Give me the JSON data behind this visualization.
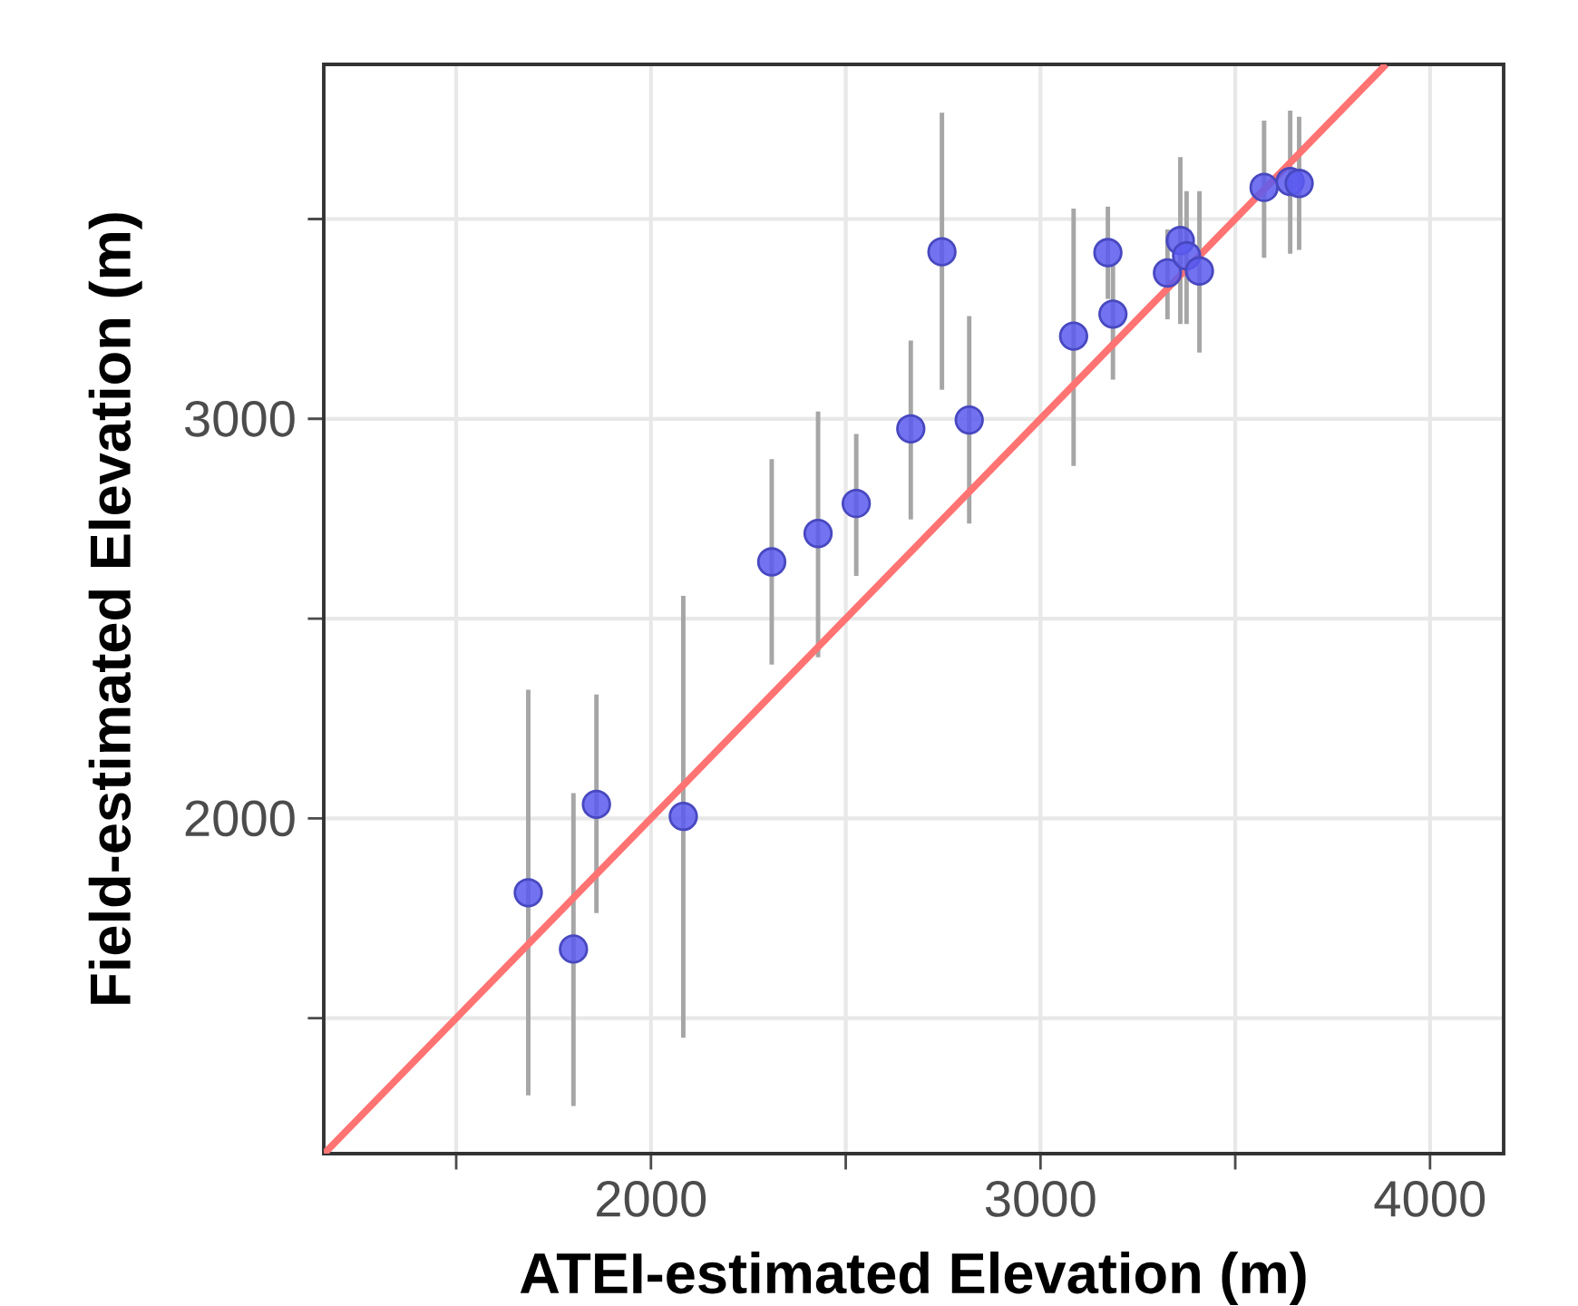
{
  "chart_data": {
    "type": "scatter",
    "xlabel": "ATEI-estimated Elevation (m)",
    "ylabel": "Field-estimated Elevation (m)",
    "xlim": [
      1160,
      4189
    ],
    "ylim": [
      1161,
      3887
    ],
    "xticks": [
      {
        "value": 1500,
        "label": null
      },
      2000,
      {
        "value": 2500,
        "label": null
      },
      3000,
      {
        "value": 3500,
        "label": null
      },
      4000
    ],
    "yticks": [
      {
        "value": 1500,
        "label": null
      },
      2000,
      {
        "value": 2500,
        "label": null
      },
      3000,
      {
        "value": 3500,
        "label": null
      }
    ],
    "grid": true,
    "marker": "circle",
    "series": [
      {
        "color": "#5a5af0",
        "x": [
          1685,
          1801,
          1860,
          2083,
          2310,
          2429,
          2527,
          2667,
          2747,
          2817,
          3085,
          3173,
          3186,
          3326,
          3359,
          3375,
          3408,
          3574,
          3641,
          3664
        ],
        "values": [
          1814,
          1673,
          2035,
          2005,
          2642,
          2713,
          2788,
          2975,
          3418,
          2997,
          3207,
          3416,
          3262,
          3365,
          3446,
          3408,
          3370,
          3579,
          3594,
          3589
        ],
        "errors": [
          [
            1307,
            2322
          ],
          [
            1280,
            2063
          ],
          [
            1763,
            2310
          ],
          [
            1451,
            2557
          ],
          [
            2385,
            2899
          ],
          [
            2403,
            3018
          ],
          [
            2607,
            2962
          ],
          [
            2748,
            3196
          ],
          [
            3073,
            3766
          ],
          [
            2738,
            3257
          ],
          [
            2882,
            3526
          ],
          [
            3300,
            3531
          ],
          [
            3098,
            3385
          ],
          [
            3249,
            3474
          ],
          [
            3237,
            3655
          ],
          [
            3237,
            3570
          ],
          [
            3166,
            3570
          ],
          [
            3403,
            3746
          ],
          [
            3413,
            3771
          ],
          [
            3423,
            3756
          ]
        ]
      },
      {
        "type": "line",
        "color": "#ff7373",
        "marker": "none",
        "x": [
          1161,
          3887
        ],
        "values": [
          1161,
          3887
        ]
      }
    ]
  }
}
